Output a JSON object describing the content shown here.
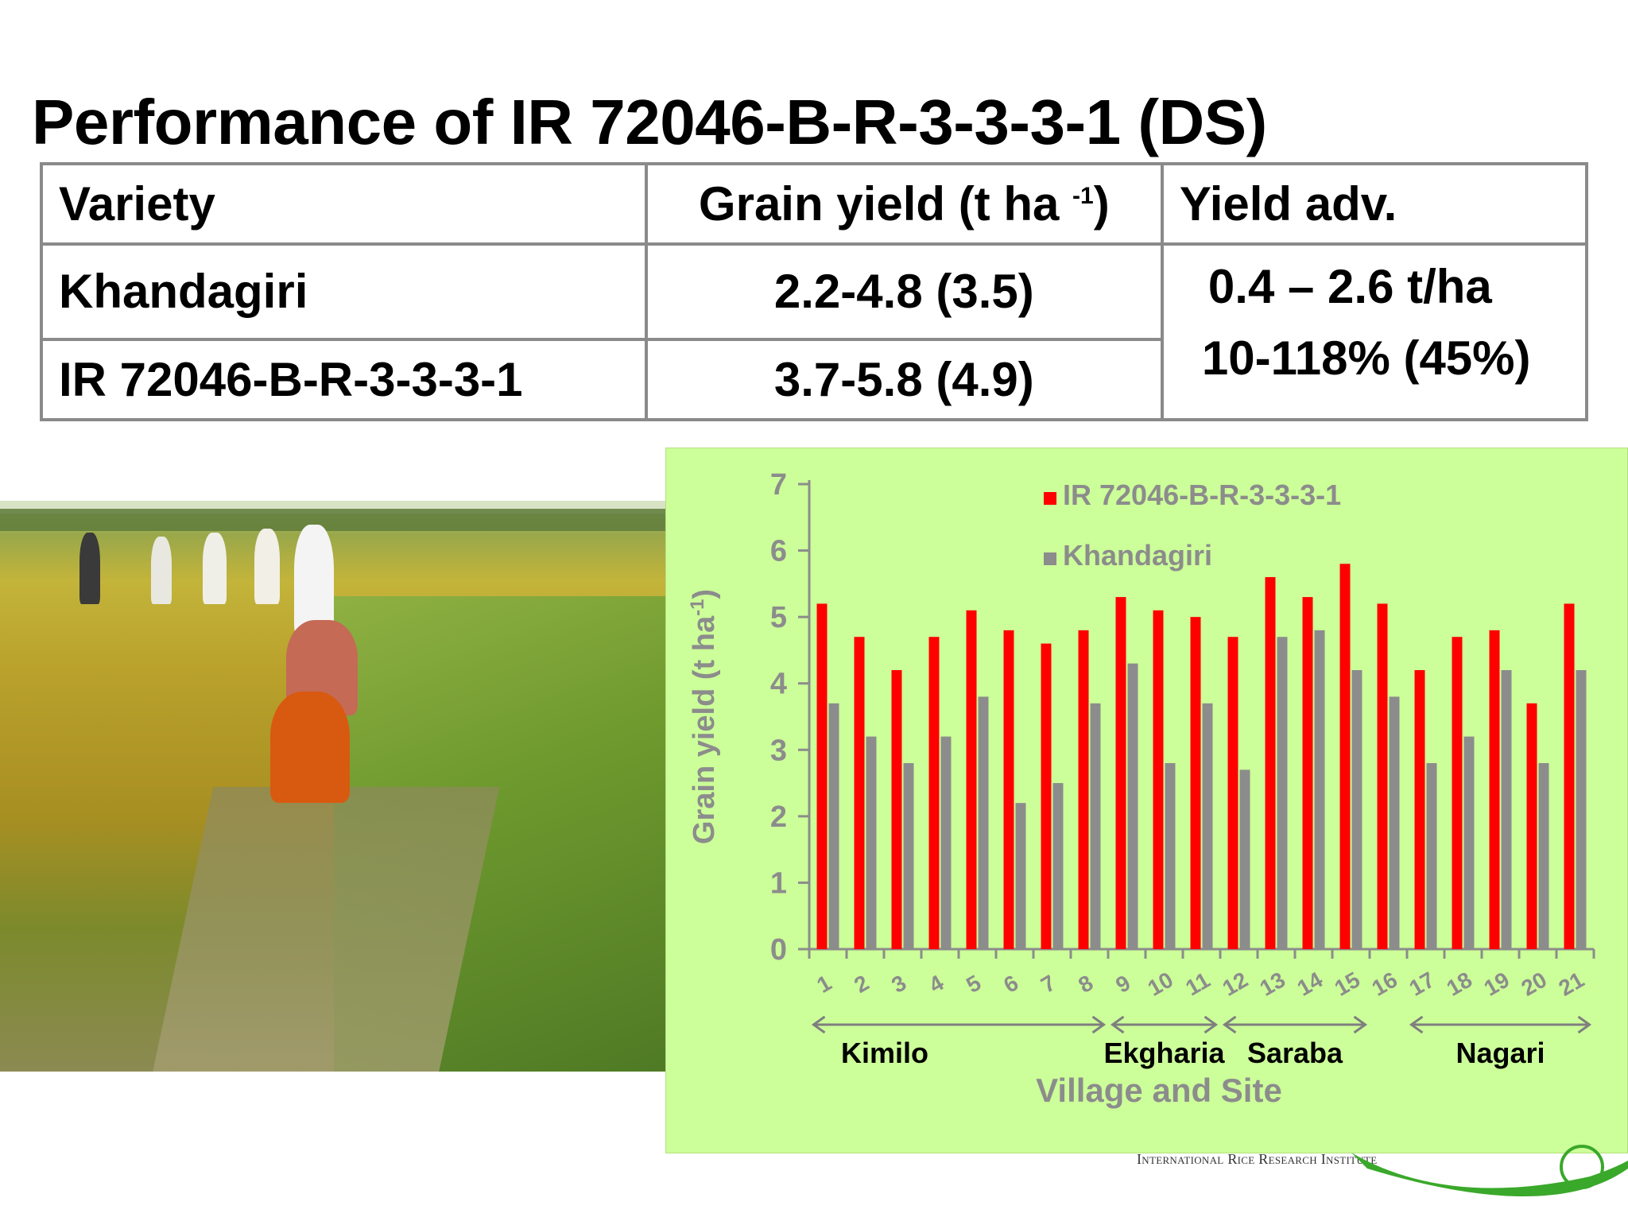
{
  "slide": {
    "title": "Performance of IR 72046-B-R-3-3-3-1 (DS)",
    "footer_text": "International Rice Research Institute"
  },
  "table": {
    "header": {
      "variety": "Variety",
      "grain_yield_prefix": "Grain yield (t ha ",
      "grain_yield_sup": "-1",
      "grain_yield_suffix": ")",
      "yield_adv": "Yield adv."
    },
    "rows": [
      {
        "variety": "Khandagiri",
        "grain_yield": "2.2-4.8 (3.5)"
      },
      {
        "variety": "IR 72046-B-R-3-3-3-1",
        "grain_yield": "3.7-5.8 (4.9)"
      }
    ],
    "yield_adv_line1": "0.4 – 2.6 t/ha",
    "yield_adv_line2": "10-118% (45%)"
  },
  "chart_data": {
    "type": "bar",
    "categories": [
      "1",
      "2",
      "3",
      "4",
      "5",
      "6",
      "7",
      "8",
      "9",
      "10",
      "11",
      "12",
      "13",
      "14",
      "15",
      "16",
      "17",
      "18",
      "19",
      "20",
      "21"
    ],
    "series": [
      {
        "name": "IR 72046-B-R-3-3-3-1",
        "color": "#ff0000",
        "values": [
          5.2,
          4.7,
          4.2,
          4.7,
          5.1,
          4.8,
          4.6,
          4.8,
          5.3,
          5.1,
          5.0,
          4.7,
          5.6,
          5.3,
          5.8,
          5.2,
          4.2,
          4.7,
          4.8,
          3.7,
          5.2
        ]
      },
      {
        "name": "Khandagiri",
        "color": "#8c8c8c",
        "values": [
          3.7,
          3.2,
          2.8,
          3.2,
          3.8,
          2.2,
          2.5,
          3.7,
          4.3,
          2.8,
          3.7,
          2.7,
          4.7,
          4.8,
          4.2,
          3.8,
          2.8,
          3.2,
          4.2,
          2.8,
          4.2
        ]
      }
    ],
    "ylabel_prefix": "Grain yield (t ha",
    "ylabel_sup": "-1",
    "ylabel_suffix": ")",
    "xlabel": "Village and Site",
    "ylim": [
      0,
      7
    ],
    "yticks": [
      0,
      1,
      2,
      3,
      4,
      5,
      6,
      7
    ],
    "legend_position": "top-center",
    "background_color": "#ccff99",
    "groups": [
      {
        "label": "Kimilo",
        "from": 1,
        "to": 8
      },
      {
        "label": "Ekgharia",
        "from": 9,
        "to": 11
      },
      {
        "label": "Saraba",
        "from": 12,
        "to": 15
      },
      {
        "label": "Nagari",
        "from": 17,
        "to": 21
      }
    ]
  }
}
